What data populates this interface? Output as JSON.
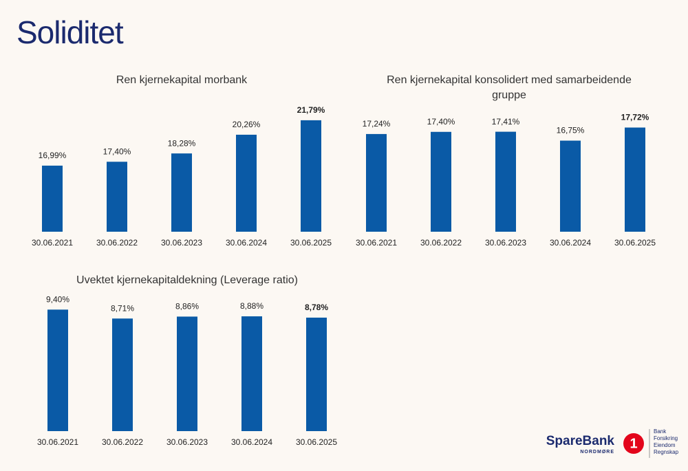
{
  "title": "Soliditet",
  "chart_data": [
    {
      "type": "bar",
      "title": "Ren kjernekapital morbank",
      "categories": [
        "30.06.2021",
        "30.06.2022",
        "30.06.2023",
        "30.06.2024",
        "30.06.2025"
      ],
      "values": [
        16.99,
        17.4,
        18.28,
        20.26,
        21.79
      ],
      "value_labels": [
        "16,99%",
        "17,40%",
        "18,28%",
        "20,26%",
        "21,79%"
      ],
      "color": "#0a5aa6",
      "ylim": [
        10,
        22
      ]
    },
    {
      "type": "bar",
      "title": "Ren kjernekapital konsolidert med samarbeidende gruppe",
      "categories": [
        "30.06.2021",
        "30.06.2022",
        "30.06.2023",
        "30.06.2024",
        "30.06.2025"
      ],
      "values": [
        17.24,
        17.4,
        17.41,
        16.75,
        17.72
      ],
      "value_labels": [
        "17,24%",
        "17,40%",
        "17,41%",
        "16,75%",
        "17,72%"
      ],
      "color": "#0a5aa6",
      "ylim": [
        10,
        18
      ]
    },
    {
      "type": "bar",
      "title": "Uvektet kjernekapitaldekning (Leverage ratio)",
      "categories": [
        "30.06.2021",
        "30.06.2022",
        "30.06.2023",
        "30.06.2024",
        "30.06.2025"
      ],
      "values": [
        9.4,
        8.71,
        8.86,
        8.88,
        8.78
      ],
      "value_labels": [
        "9,40%",
        "8,71%",
        "8,86%",
        "8,88%",
        "8,78%"
      ],
      "color": "#0a5aa6",
      "ylim": [
        0,
        10
      ]
    }
  ],
  "logo": {
    "name": "SpareBank",
    "region": "NORDMØRE",
    "badge": "1",
    "services": [
      "Bank",
      "Forsikring",
      "Eiendom",
      "Regnskap"
    ]
  }
}
